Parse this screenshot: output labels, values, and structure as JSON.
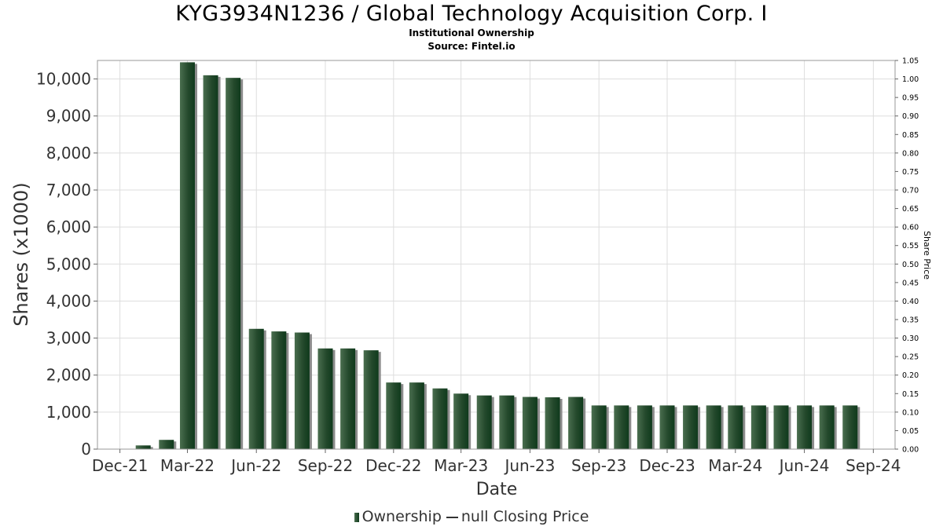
{
  "chart_data": {
    "type": "bar",
    "title": "KYG3934N1236 / Global Technology Acquisition Corp. I",
    "subtitle": "Institutional Ownership",
    "source": "Source: Fintel.io",
    "xlabel": "Date",
    "ylabel": "Shares (x1000)",
    "y2label": "Share Price",
    "ylim": [
      0,
      10500
    ],
    "y_ticks": [
      0,
      1000,
      2000,
      3000,
      4000,
      5000,
      6000,
      7000,
      8000,
      9000,
      10000
    ],
    "y_tick_labels": [
      "0",
      "1,000",
      "2,000",
      "3,000",
      "4,000",
      "5,000",
      "6,000",
      "7,000",
      "8,000",
      "9,000",
      "10,000"
    ],
    "y2lim": [
      0,
      1.05
    ],
    "y2_tick_labels": [
      "0.00",
      "0.05",
      "0.10",
      "0.15",
      "0.20",
      "0.25",
      "0.30",
      "0.35",
      "0.40",
      "0.45",
      "0.50",
      "0.55",
      "0.60",
      "0.65",
      "0.70",
      "0.75",
      "0.80",
      "0.85",
      "0.90",
      "0.95",
      "1.00",
      "1.05"
    ],
    "x_tick_labels": [
      "Dec-21",
      "Mar-22",
      "Jun-22",
      "Sep-22",
      "Dec-22",
      "Mar-23",
      "Jun-23",
      "Sep-23",
      "Dec-23",
      "Mar-24",
      "Jun-24",
      "Sep-24"
    ],
    "x_range": [
      "2021-11-01",
      "2024-09-30"
    ],
    "x_tick_dates": [
      "2021-12-01",
      "2022-03-01",
      "2022-06-01",
      "2022-09-01",
      "2022-12-01",
      "2023-03-01",
      "2023-06-01",
      "2023-09-01",
      "2023-12-01",
      "2024-03-01",
      "2024-06-01",
      "2024-09-01"
    ],
    "grid": true,
    "legend_position": "bottom-center",
    "colors": {
      "bar_dark": "#0f3a1c",
      "bar_light": "#4a6e4f",
      "shadow": "#8c8c8c",
      "grid": "#dddddd"
    },
    "series": [
      {
        "name": "Ownership",
        "dates": [
          "2022-01-01",
          "2022-02-01",
          "2022-03-01",
          "2022-04-01",
          "2022-05-01",
          "2022-06-01",
          "2022-07-01",
          "2022-08-01",
          "2022-09-01",
          "2022-10-01",
          "2022-11-01",
          "2022-12-01",
          "2023-01-01",
          "2023-02-01",
          "2023-03-01",
          "2023-04-01",
          "2023-05-01",
          "2023-06-01",
          "2023-07-01",
          "2023-08-01",
          "2023-09-01",
          "2023-10-01",
          "2023-11-01",
          "2023-12-01",
          "2024-01-01",
          "2024-02-01",
          "2024-03-01",
          "2024-04-01",
          "2024-05-01",
          "2024-06-01",
          "2024-07-01",
          "2024-08-01"
        ],
        "values": [
          100,
          250,
          10450,
          10100,
          10030,
          3250,
          3180,
          3150,
          2720,
          2720,
          2670,
          1800,
          1800,
          1640,
          1500,
          1450,
          1450,
          1410,
          1400,
          1410,
          1180,
          1180,
          1180,
          1180,
          1180,
          1180,
          1180,
          1180,
          1180,
          1180,
          1180,
          1180
        ]
      }
    ],
    "legend": [
      {
        "label": "Ownership",
        "marker": "bar"
      },
      {
        "label": "null Closing Price",
        "marker": "line"
      }
    ]
  }
}
